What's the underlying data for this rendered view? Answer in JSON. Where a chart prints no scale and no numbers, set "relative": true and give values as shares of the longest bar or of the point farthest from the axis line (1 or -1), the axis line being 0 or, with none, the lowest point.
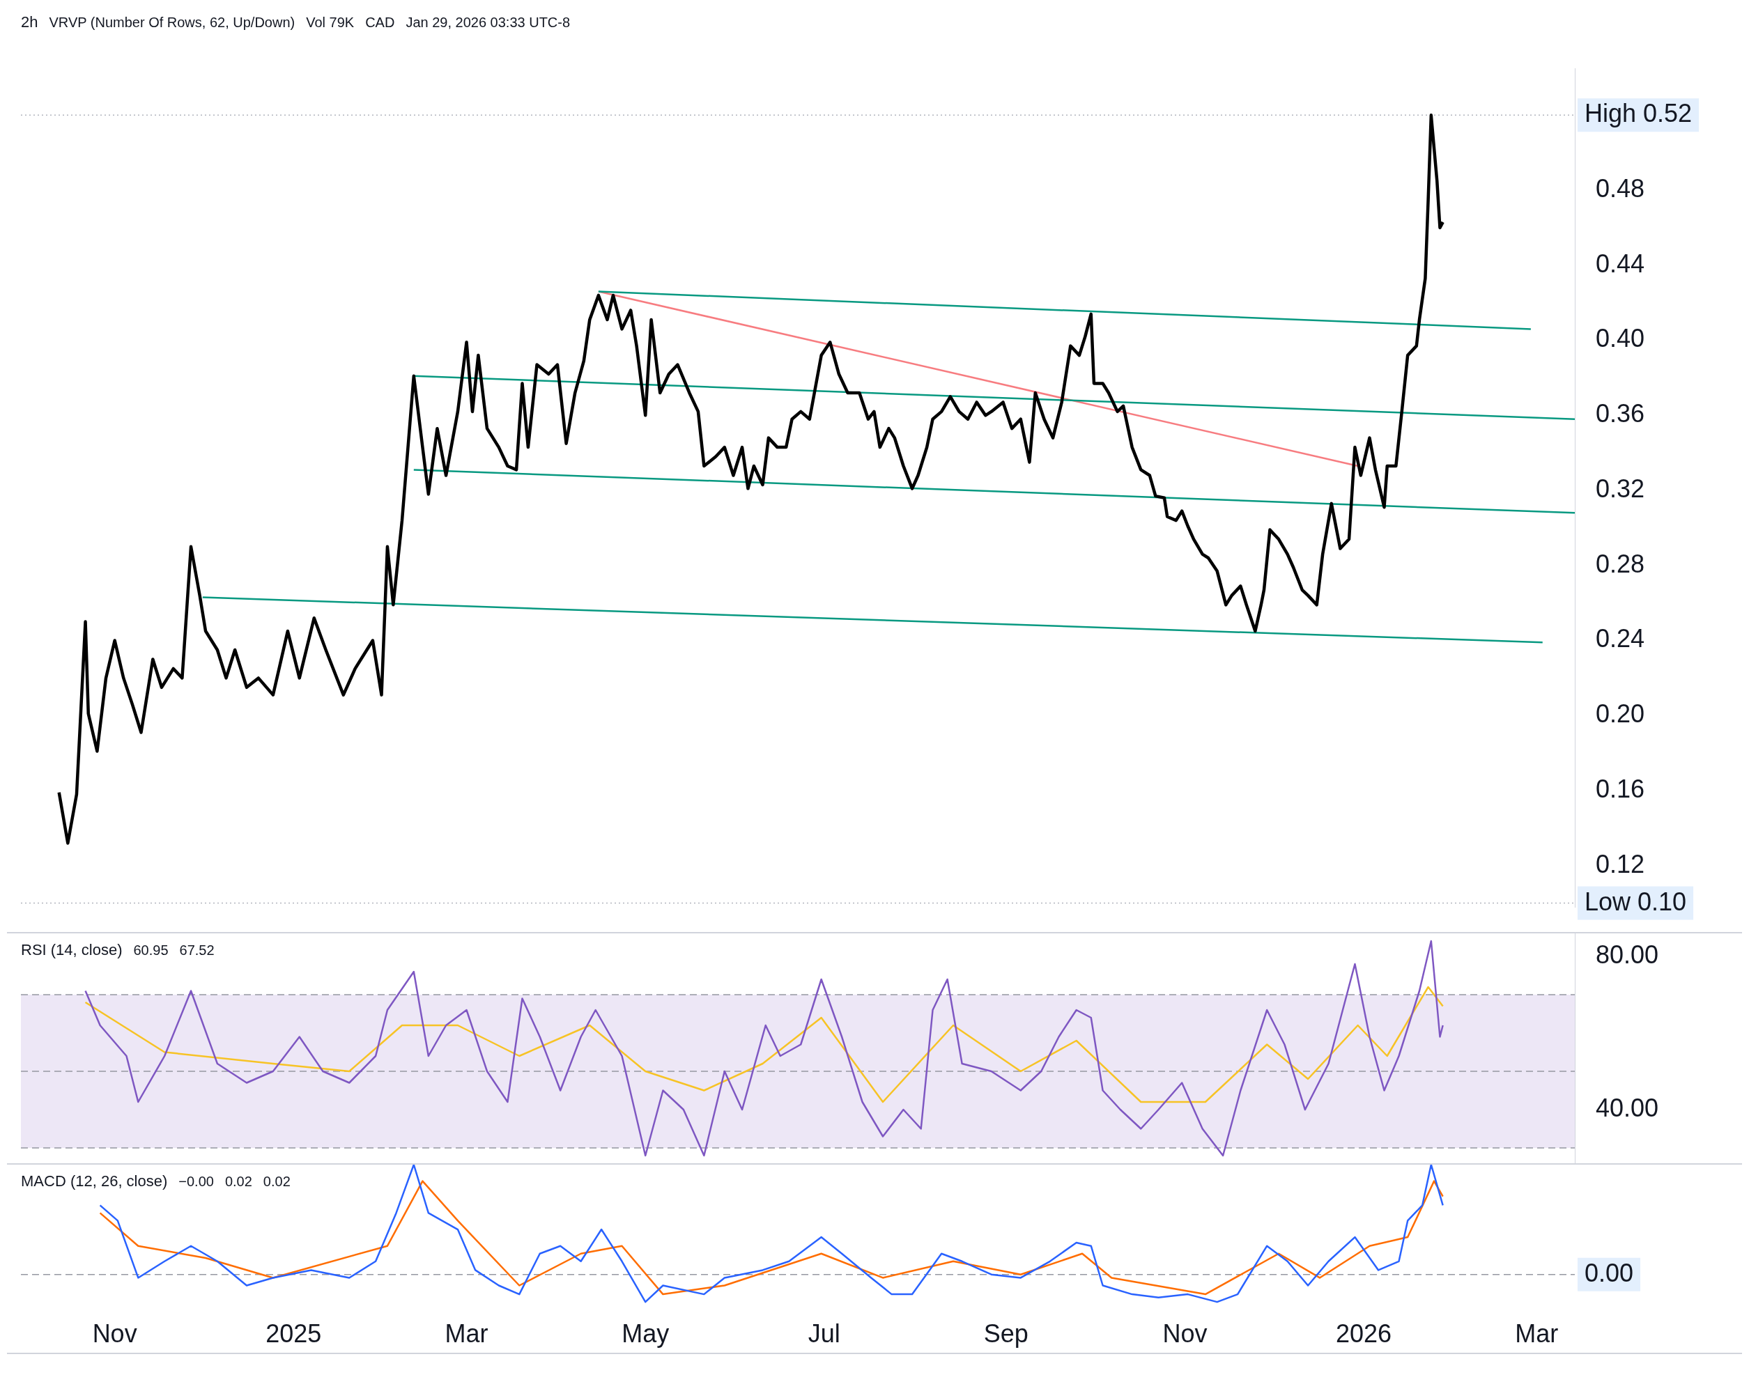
{
  "chart_data": [
    {
      "type": "line",
      "title": "2h",
      "annotations": [
        "VRVP (Number Of Rows, 62, Up/Down)",
        "Vol 79K",
        "CAD",
        "Jan 29, 2026 03:33 UTC-8"
      ],
      "xlim": [
        "2024-09-30",
        "2026-03-14"
      ],
      "ylim": [
        0.098,
        0.545
      ],
      "yticks": [
        {
          "value": 0.12,
          "label": "0.12"
        },
        {
          "value": 0.16,
          "label": "0.16"
        },
        {
          "value": 0.2,
          "label": "0.20"
        },
        {
          "value": 0.24,
          "label": "0.24"
        },
        {
          "value": 0.28,
          "label": "0.28"
        },
        {
          "value": 0.32,
          "label": "0.32"
        },
        {
          "value": 0.36,
          "label": "0.36"
        },
        {
          "value": 0.4,
          "label": "0.40"
        },
        {
          "value": 0.44,
          "label": "0.44"
        },
        {
          "value": 0.48,
          "label": "0.48"
        }
      ],
      "tick_labels": "y",
      "marker": "none",
      "line_style": "solid",
      "ref_lines": [
        {
          "axis": "y",
          "value": 0.52,
          "label": "High 0.52",
          "line_style": "dotted",
          "color": "#b2b5be"
        },
        {
          "axis": "y",
          "value": 0.1,
          "label": "Low 0.10",
          "line_style": "dotted",
          "color": "#b2b5be"
        }
      ],
      "series": [
        {
          "color": "#000000",
          "x": [
            "2024-10-13",
            "2024-10-16",
            "2024-10-19",
            "2024-10-22",
            "2024-10-23",
            "2024-10-26",
            "2024-10-29",
            "2024-11-01",
            "2024-11-04",
            "2024-11-07",
            "2024-11-10",
            "2024-11-14",
            "2024-11-17",
            "2024-11-21",
            "2024-11-24",
            "2024-11-27",
            "2024-11-30",
            "2024-12-02",
            "2024-12-06",
            "2024-12-09",
            "2024-12-12",
            "2024-12-16",
            "2024-12-20",
            "2024-12-25",
            "2024-12-30",
            "2025-01-03",
            "2025-01-08",
            "2025-01-12",
            "2025-01-18",
            "2025-01-22",
            "2025-01-28",
            "2025-01-31",
            "2025-02-02",
            "2025-02-04",
            "2025-02-07",
            "2025-02-11",
            "2025-02-14",
            "2025-02-16",
            "2025-02-19",
            "2025-02-22",
            "2025-02-26",
            "2025-03-01",
            "2025-03-03",
            "2025-03-05",
            "2025-03-08",
            "2025-03-12",
            "2025-03-15",
            "2025-03-18",
            "2025-03-20",
            "2025-03-22",
            "2025-03-25",
            "2025-03-29",
            "2025-04-01",
            "2025-04-04",
            "2025-04-07",
            "2025-04-10",
            "2025-04-12",
            "2025-04-15",
            "2025-04-18",
            "2025-04-20",
            "2025-04-23",
            "2025-04-26",
            "2025-04-28",
            "2025-05-01",
            "2025-05-03",
            "2025-05-06",
            "2025-05-09",
            "2025-05-12",
            "2025-05-16",
            "2025-05-19",
            "2025-05-21",
            "2025-05-25",
            "2025-05-28",
            "2025-05-31",
            "2025-06-03",
            "2025-06-05",
            "2025-06-07",
            "2025-06-10",
            "2025-06-12",
            "2025-06-15",
            "2025-06-18",
            "2025-06-20",
            "2025-06-23",
            "2025-06-26",
            "2025-06-30",
            "2025-07-03",
            "2025-07-06",
            "2025-07-09",
            "2025-07-13",
            "2025-07-16",
            "2025-07-18",
            "2025-07-20",
            "2025-07-23",
            "2025-07-25",
            "2025-07-28",
            "2025-07-31",
            "2025-08-02",
            "2025-08-05",
            "2025-08-07",
            "2025-08-10",
            "2025-08-13",
            "2025-08-16",
            "2025-08-19",
            "2025-08-22",
            "2025-08-25",
            "2025-08-27",
            "2025-08-31",
            "2025-09-03",
            "2025-09-06",
            "2025-09-09",
            "2025-09-11",
            "2025-09-14",
            "2025-09-17",
            "2025-09-20",
            "2025-09-23",
            "2025-09-26",
            "2025-09-28",
            "2025-09-30",
            "2025-10-01",
            "2025-10-04",
            "2025-10-06",
            "2025-10-09",
            "2025-10-11",
            "2025-10-14",
            "2025-10-17",
            "2025-10-20",
            "2025-10-22",
            "2025-10-25",
            "2025-10-26",
            "2025-10-29",
            "2025-10-31",
            "2025-11-02",
            "2025-11-04",
            "2025-11-07",
            "2025-11-09",
            "2025-11-12",
            "2025-11-15",
            "2025-11-17",
            "2025-11-20",
            "2025-11-22",
            "2025-11-25",
            "2025-11-27",
            "2025-11-28",
            "2025-11-30",
            "2025-12-03",
            "2025-12-06",
            "2025-12-08",
            "2025-12-11",
            "2025-12-13",
            "2025-12-16",
            "2025-12-18",
            "2025-12-21",
            "2025-12-24",
            "2025-12-27",
            "2025-12-29",
            "2025-12-31",
            "2026-01-03",
            "2026-01-05",
            "2026-01-08",
            "2026-01-09",
            "2026-01-12",
            "2026-01-14",
            "2026-01-16",
            "2026-01-19",
            "2026-01-20",
            "2026-01-22",
            "2026-01-23",
            "2026-01-24",
            "2026-01-26",
            "2026-01-27",
            "2026-01-28"
          ],
          "values": [
            0.159,
            0.132,
            0.158,
            0.25,
            0.201,
            0.181,
            0.22,
            0.24,
            0.22,
            0.206,
            0.191,
            0.23,
            0.215,
            0.225,
            0.22,
            0.29,
            0.264,
            0.245,
            0.235,
            0.22,
            0.235,
            0.215,
            0.22,
            0.211,
            0.245,
            0.22,
            0.252,
            0.235,
            0.211,
            0.225,
            0.24,
            0.211,
            0.29,
            0.259,
            0.304,
            0.381,
            0.343,
            0.318,
            0.353,
            0.328,
            0.362,
            0.399,
            0.362,
            0.392,
            0.353,
            0.343,
            0.333,
            0.331,
            0.377,
            0.343,
            0.387,
            0.382,
            0.387,
            0.345,
            0.372,
            0.389,
            0.411,
            0.424,
            0.411,
            0.424,
            0.406,
            0.416,
            0.397,
            0.36,
            0.411,
            0.372,
            0.382,
            0.387,
            0.372,
            0.362,
            0.333,
            0.338,
            0.343,
            0.328,
            0.343,
            0.321,
            0.333,
            0.323,
            0.348,
            0.343,
            0.343,
            0.358,
            0.362,
            0.358,
            0.392,
            0.399,
            0.382,
            0.372,
            0.372,
            0.358,
            0.362,
            0.343,
            0.353,
            0.348,
            0.333,
            0.321,
            0.328,
            0.343,
            0.358,
            0.362,
            0.37,
            0.362,
            0.358,
            0.367,
            0.36,
            0.362,
            0.367,
            0.353,
            0.358,
            0.335,
            0.372,
            0.358,
            0.348,
            0.367,
            0.397,
            0.392,
            0.402,
            0.414,
            0.377,
            0.377,
            0.372,
            0.362,
            0.365,
            0.343,
            0.331,
            0.328,
            0.317,
            0.316,
            0.306,
            0.304,
            0.309,
            0.301,
            0.294,
            0.286,
            0.284,
            0.277,
            0.259,
            0.264,
            0.269,
            0.259,
            0.245,
            0.259,
            0.267,
            0.299,
            0.294,
            0.286,
            0.279,
            0.267,
            0.264,
            0.259,
            0.286,
            0.313,
            0.289,
            0.294,
            0.343,
            0.328,
            0.348,
            0.331,
            0.311,
            0.333,
            0.333,
            0.362,
            0.392,
            0.397,
            0.411,
            0.433,
            0.475,
            0.52,
            0.485,
            0.46,
            0.463
          ]
        },
        {
          "color": "#089981",
          "x": [
            "2025-04-15",
            "2026-02-27"
          ],
          "values": [
            0.426,
            0.406
          ]
        },
        {
          "color": "#089981",
          "x": [
            "2025-02-11",
            "2026-03-14"
          ],
          "values": [
            0.381,
            0.358
          ]
        },
        {
          "color": "#089981",
          "x": [
            "2025-02-11",
            "2026-03-14"
          ],
          "values": [
            0.331,
            0.308
          ]
        },
        {
          "color": "#089981",
          "x": [
            "2024-12-01",
            "2026-03-03"
          ],
          "values": [
            0.263,
            0.239
          ]
        },
        {
          "color": "#f77c80",
          "x": [
            "2025-04-15",
            "2025-12-30"
          ],
          "values": [
            0.426,
            0.333
          ]
        }
      ]
    },
    {
      "type": "line",
      "title": "RSI (14, close)",
      "annotations": [
        "60.95",
        "67.52"
      ],
      "xlim": [
        "2024-09-30",
        "2026-03-14"
      ],
      "ylim": [
        26,
        86
      ],
      "yticks": [
        {
          "value": 40,
          "label": "40.00"
        },
        {
          "value": 80,
          "label": "80.00"
        }
      ],
      "tick_labels": "y",
      "marker": "none",
      "line_style": "solid",
      "bands": [
        {
          "axis": "y",
          "from": 30,
          "to": 70,
          "color": "#ede7f6"
        }
      ],
      "ref_lines": [
        {
          "axis": "y",
          "value": 70,
          "line_style": "dashed",
          "color": "#9598a1"
        },
        {
          "axis": "y",
          "value": 50,
          "line_style": "dashed",
          "color": "#9598a1"
        },
        {
          "axis": "y",
          "value": 30,
          "line_style": "dashed",
          "color": "#9598a1"
        }
      ],
      "series": [
        {
          "color": "#7e57c2",
          "x": [
            "2024-10-22",
            "2024-10-27",
            "2024-11-05",
            "2024-11-09",
            "2024-11-18",
            "2024-11-27",
            "2024-12-06",
            "2024-12-16",
            "2024-12-25",
            "2025-01-03",
            "2025-01-11",
            "2025-01-20",
            "2025-01-29",
            "2025-02-02",
            "2025-02-11",
            "2025-02-16",
            "2025-02-22",
            "2025-03-01",
            "2025-03-08",
            "2025-03-15",
            "2025-03-20",
            "2025-03-26",
            "2025-04-02",
            "2025-04-09",
            "2025-04-14",
            "2025-04-23",
            "2025-05-01",
            "2025-05-07",
            "2025-05-14",
            "2025-05-21",
            "2025-05-28",
            "2025-06-03",
            "2025-06-11",
            "2025-06-16",
            "2025-06-23",
            "2025-06-30",
            "2025-07-07",
            "2025-07-14",
            "2025-07-21",
            "2025-07-28",
            "2025-08-03",
            "2025-08-07",
            "2025-08-12",
            "2025-08-17",
            "2025-08-27",
            "2025-09-06",
            "2025-09-13",
            "2025-09-19",
            "2025-09-25",
            "2025-09-30",
            "2025-10-04",
            "2025-10-10",
            "2025-10-17",
            "2025-10-23",
            "2025-10-31",
            "2025-11-07",
            "2025-11-14",
            "2025-11-20",
            "2025-11-29",
            "2025-12-05",
            "2025-12-12",
            "2025-12-20",
            "2025-12-29",
            "2026-01-03",
            "2026-01-08",
            "2026-01-13",
            "2026-01-20",
            "2026-01-24",
            "2026-01-27",
            "2026-01-28"
          ],
          "values": [
            71,
            62,
            54,
            42,
            54,
            71,
            52,
            47,
            50,
            59,
            50,
            47,
            54,
            66,
            76,
            54,
            62,
            66,
            50,
            42,
            69,
            59,
            45,
            59,
            66,
            54,
            28,
            45,
            40,
            28,
            50,
            40,
            62,
            54,
            57,
            74,
            59,
            42,
            33,
            40,
            35,
            66,
            74,
            52,
            50,
            45,
            50,
            59,
            66,
            64,
            45,
            40,
            35,
            40,
            47,
            35,
            28,
            45,
            66,
            57,
            40,
            52,
            78,
            59,
            45,
            54,
            71,
            84,
            59,
            62
          ]
        },
        {
          "color": "#f7c325",
          "x": [
            "2024-10-22",
            "2024-11-18",
            "2024-12-25",
            "2025-01-20",
            "2025-02-07",
            "2025-02-26",
            "2025-03-19",
            "2025-04-12",
            "2025-05-01",
            "2025-05-21",
            "2025-06-10",
            "2025-06-30",
            "2025-07-21",
            "2025-08-14",
            "2025-09-06",
            "2025-09-25",
            "2025-10-17",
            "2025-11-08",
            "2025-11-29",
            "2025-12-13",
            "2025-12-30",
            "2026-01-09",
            "2026-01-23",
            "2026-01-28"
          ],
          "values": [
            68,
            55,
            52,
            50,
            62,
            62,
            54,
            62,
            50,
            45,
            52,
            64,
            42,
            62,
            50,
            58,
            42,
            42,
            57,
            48,
            62,
            54,
            72,
            67
          ]
        }
      ]
    },
    {
      "type": "line",
      "title": "MACD (12, 26, close)",
      "annotations": [
        "−0.00",
        "0.02",
        "0.02"
      ],
      "xlim": [
        "2024-09-30",
        "2026-03-14"
      ],
      "xticks": [
        {
          "value": "2024-11-01",
          "label": "Nov"
        },
        {
          "value": "2025-01-01",
          "label": "2025"
        },
        {
          "value": "2025-03-01",
          "label": "Mar"
        },
        {
          "value": "2025-05-01",
          "label": "May"
        },
        {
          "value": "2025-07-01",
          "label": "Jul"
        },
        {
          "value": "2025-09-01",
          "label": "Sep"
        },
        {
          "value": "2025-11-01",
          "label": "Nov"
        },
        {
          "value": "2026-01-01",
          "label": "2026"
        },
        {
          "value": "2026-03-01",
          "label": "Mar"
        }
      ],
      "relative": true,
      "tick_labels": "x",
      "marker": "none",
      "line_style": "solid",
      "ref_lines": [
        {
          "axis": "y",
          "value": 0,
          "label": "0.00",
          "line_style": "dashed",
          "color": "#9598a1"
        }
      ],
      "series": [
        {
          "color": "#2962ff",
          "x": [
            "2024-10-27",
            "2024-11-02",
            "2024-11-09",
            "2024-11-18",
            "2024-11-27",
            "2024-12-06",
            "2024-12-16",
            "2024-12-25",
            "2025-01-07",
            "2025-01-20",
            "2025-01-29",
            "2025-02-05",
            "2025-02-11",
            "2025-02-16",
            "2025-02-26",
            "2025-03-04",
            "2025-03-12",
            "2025-03-19",
            "2025-03-26",
            "2025-04-02",
            "2025-04-09",
            "2025-04-16",
            "2025-04-23",
            "2025-05-01",
            "2025-05-07",
            "2025-05-21",
            "2025-05-28",
            "2025-06-10",
            "2025-06-19",
            "2025-06-30",
            "2025-07-07",
            "2025-07-17",
            "2025-07-24",
            "2025-07-31",
            "2025-08-10",
            "2025-08-17",
            "2025-08-27",
            "2025-09-06",
            "2025-09-16",
            "2025-09-25",
            "2025-09-30",
            "2025-10-04",
            "2025-10-14",
            "2025-10-23",
            "2025-11-02",
            "2025-11-12",
            "2025-11-19",
            "2025-11-29",
            "2025-12-06",
            "2025-12-13",
            "2025-12-20",
            "2025-12-29",
            "2026-01-06",
            "2026-01-13",
            "2026-01-16",
            "2026-01-21",
            "2026-01-24",
            "2026-01-28"
          ],
          "values": [
            0.63,
            0.49,
            -0.03,
            0.12,
            0.26,
            0.12,
            -0.1,
            -0.03,
            0.04,
            -0.03,
            0.12,
            0.56,
            1,
            0.56,
            0.41,
            0.04,
            -0.1,
            -0.18,
            0.19,
            0.26,
            0.12,
            0.41,
            0.12,
            -0.25,
            -0.1,
            -0.18,
            -0.03,
            0.04,
            0.12,
            0.34,
            0.19,
            -0.03,
            -0.18,
            -0.18,
            0.19,
            0.12,
            0,
            -0.03,
            0.12,
            0.29,
            0.26,
            -0.1,
            -0.18,
            -0.21,
            -0.18,
            -0.25,
            -0.18,
            0.26,
            0.12,
            -0.1,
            0.12,
            0.34,
            0.04,
            0.12,
            0.49,
            0.63,
            1,
            0.63
          ]
        },
        {
          "color": "#ff6d00",
          "x": [
            "2024-10-27",
            "2024-11-09",
            "2024-12-02",
            "2024-12-25",
            "2025-02-02",
            "2025-02-14",
            "2025-02-26",
            "2025-03-19",
            "2025-04-09",
            "2025-04-23",
            "2025-05-07",
            "2025-05-28",
            "2025-06-30",
            "2025-07-21",
            "2025-08-14",
            "2025-09-06",
            "2025-09-27",
            "2025-10-07",
            "2025-11-08",
            "2025-12-03",
            "2025-12-17",
            "2026-01-03",
            "2026-01-16",
            "2026-01-25",
            "2026-01-28"
          ],
          "values": [
            0.56,
            0.26,
            0.15,
            -0.03,
            0.26,
            0.85,
            0.49,
            -0.1,
            0.19,
            0.26,
            -0.18,
            -0.1,
            0.19,
            -0.03,
            0.12,
            0,
            0.19,
            -0.03,
            -0.18,
            0.19,
            -0.03,
            0.26,
            0.34,
            0.85,
            0.71
          ]
        }
      ]
    }
  ]
}
